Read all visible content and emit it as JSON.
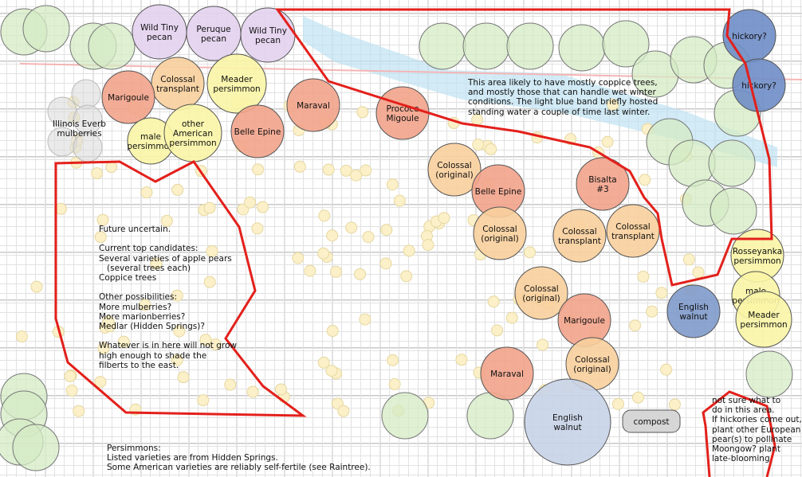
{
  "colors": {
    "pecan": "#e3d2ee",
    "colossal": "#f8cf9c",
    "persimmon": "#faf5a6",
    "chestnut": "#f2a38b",
    "walnut_light": "#c8d3e8",
    "walnut_dark": "#7e9acb",
    "hickory": "#6f8dc6",
    "mulberry": "#dcdcdc",
    "existing_tree": "#d4ebc4",
    "boundary": "#e3201b",
    "water_band": "#bfe3f2",
    "compost": "#d6d6d6"
  },
  "trees": [
    {
      "lines": [
        "Wild Tiny",
        "pecan"
      ],
      "type": "pecan"
    },
    {
      "lines": [
        "Peruque",
        "pecan"
      ],
      "type": "pecan"
    },
    {
      "lines": [
        "Wild Tiny",
        "pecan"
      ],
      "type": "pecan"
    },
    {
      "lines": [
        "Colossal",
        "transplant"
      ],
      "type": "colossal"
    },
    {
      "lines": [
        "Meader",
        "persimmon"
      ],
      "type": "persimmon"
    },
    {
      "lines": [
        "Marigoule"
      ],
      "type": "chestnut"
    },
    {
      "lines": [
        "Belle Epine"
      ],
      "type": "chestnut"
    },
    {
      "lines": [
        "male",
        "persimmon"
      ],
      "type": "persimmon"
    },
    {
      "lines": [
        "other",
        "American",
        "persimmon"
      ],
      "type": "persimmon"
    },
    {
      "lines": [
        "Maraval"
      ],
      "type": "chestnut"
    },
    {
      "lines": [
        "Prococe",
        "Migoule"
      ],
      "type": "chestnut"
    },
    {
      "lines": [
        "Colossal",
        "(original)"
      ],
      "type": "colossal"
    },
    {
      "lines": [
        "Belle Epine"
      ],
      "type": "chestnut"
    },
    {
      "lines": [
        "Colossal",
        "(original)"
      ],
      "type": "colossal"
    },
    {
      "lines": [
        "Bisalta",
        "#3"
      ],
      "type": "chestnut"
    },
    {
      "lines": [
        "Colossal",
        "transplant"
      ],
      "type": "colossal"
    },
    {
      "lines": [
        "Colossal",
        "transplant"
      ],
      "type": "colossal"
    },
    {
      "lines": [
        "Colossal",
        "(original)"
      ],
      "type": "colossal"
    },
    {
      "lines": [
        "Marigoule"
      ],
      "type": "chestnut"
    },
    {
      "lines": [
        "Colossal",
        "(original)"
      ],
      "type": "colossal"
    },
    {
      "lines": [
        "Maraval"
      ],
      "type": "chestnut"
    },
    {
      "lines": [
        "English",
        "walnut"
      ],
      "type": "walnut_light"
    },
    {
      "lines": [
        "hickory?"
      ],
      "type": "hickory"
    },
    {
      "lines": [
        "hickory?"
      ],
      "type": "hickory"
    },
    {
      "lines": [
        "Rosseyanka",
        "persimmon"
      ],
      "type": "persimmon"
    },
    {
      "lines": [
        "English",
        "walnut"
      ],
      "type": "walnut_dark"
    },
    {
      "lines": [
        "male",
        "persimmon"
      ],
      "type": "persimmon"
    },
    {
      "lines": [
        "Meader",
        "persimmon"
      ],
      "type": "persimmon"
    }
  ],
  "mulberries_label": [
    "Illinois Everb",
    "mulberries"
  ],
  "compost_label": "compost",
  "notes": {
    "wet_area": "This area likely to have mostly coppice trees,\nand mostly those that can handle wet winter\nconditions. The light blue band briefly hosted\nstanding water a couple of time last winter.",
    "future": "Future uncertain.\n\nCurrent top candidates:\nSeveral varieties of apple pears\n   (several trees each)\nCoppice trees\n\nOther possibilities:\nMore mulberries?\nMore marionberries?\nMedlar (Hidden Springs)?\n\nWhatever is in here will not grow\nhigh enough to shade the\nfilberts to the east.",
    "persimmons": "Persimmons:\nListed varieties are from Hidden Springs.\nSome American varieties are reliably self-fertile (see Raintree).",
    "not_sure": "not sure what to\ndo in this area.\nIf hickories come out,\nplant other European\npear(s) to pollinate\nMoongow? plant\nlate-blooming"
  }
}
